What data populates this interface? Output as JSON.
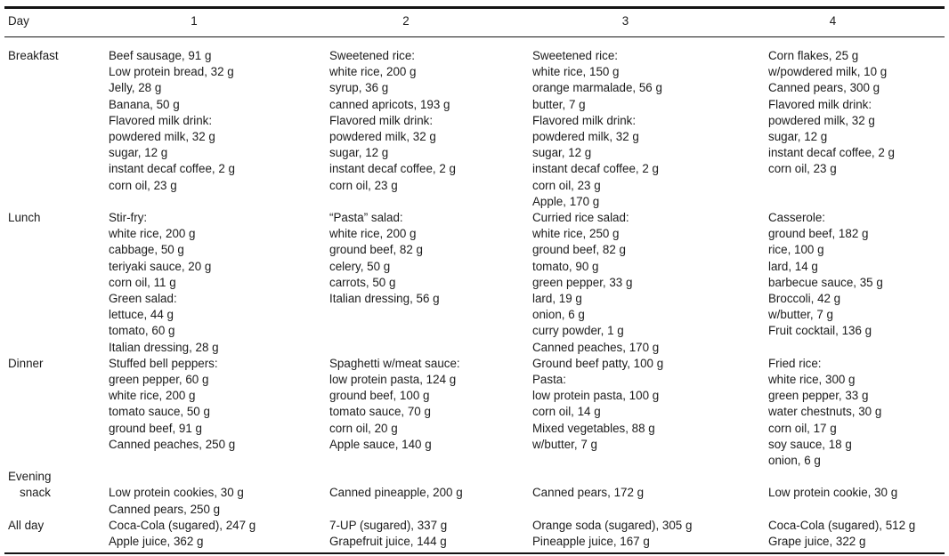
{
  "table": {
    "header": {
      "label": "Day",
      "days": [
        "1",
        "2",
        "3",
        "4"
      ]
    },
    "rows": [
      {
        "id": "breakfast",
        "label_lines": [
          "Breakfast"
        ],
        "days": [
          [
            "Beef sausage, 91 g",
            "Low protein bread, 32 g",
            "Jelly, 28 g",
            "Banana, 50 g",
            "Flavored milk drink:",
            "powdered milk, 32 g",
            "sugar, 12 g",
            "instant decaf coffee, 2 g",
            "corn oil, 23 g"
          ],
          [
            "Sweetened rice:",
            "white rice, 200 g",
            "syrup, 36 g",
            "canned apricots, 193 g",
            "Flavored milk drink:",
            "powdered milk, 32 g",
            "sugar, 12 g",
            "instant decaf coffee, 2 g",
            "corn oil, 23 g"
          ],
          [
            "Sweetened rice:",
            "white rice, 150 g",
            "orange marmalade, 56 g",
            "butter, 7 g",
            "Flavored milk drink:",
            "powdered milk, 32 g",
            "sugar, 12 g",
            "instant decaf coffee, 2 g",
            "corn oil, 23 g",
            "Apple, 170 g"
          ],
          [
            "Corn flakes, 25 g",
            "w/powdered milk, 10 g",
            "Canned pears, 300 g",
            "Flavored milk drink:",
            "powdered milk, 32 g",
            "sugar, 12 g",
            "instant decaf coffee, 2 g",
            "corn oil, 23 g"
          ]
        ]
      },
      {
        "id": "lunch",
        "label_lines": [
          "Lunch"
        ],
        "days": [
          [
            "Stir-fry:",
            "white rice, 200 g",
            "cabbage, 50 g",
            "teriyaki sauce, 20 g",
            "corn oil, 11 g",
            "Green salad:",
            "lettuce, 44 g",
            "tomato, 60 g",
            "Italian dressing, 28 g"
          ],
          [
            "“Pasta” salad:",
            "white rice, 200 g",
            "ground beef, 82 g",
            "celery, 50 g",
            "carrots, 50 g",
            "Italian dressing, 56 g"
          ],
          [
            "Curried rice salad:",
            "white rice, 250 g",
            "ground beef, 82 g",
            "tomato, 90 g",
            "green pepper, 33 g",
            "lard, 19 g",
            "onion, 6 g",
            "curry powder, 1 g",
            "Canned peaches, 170 g"
          ],
          [
            "Casserole:",
            "ground beef, 182 g",
            "rice, 100 g",
            "lard, 14 g",
            "barbecue sauce, 35 g",
            "Broccoli, 42 g",
            "w/butter, 7 g",
            "Fruit cocktail, 136 g"
          ]
        ]
      },
      {
        "id": "dinner",
        "label_lines": [
          "Dinner"
        ],
        "days": [
          [
            "Stuffed bell peppers:",
            "green pepper, 60 g",
            "white rice, 200 g",
            "tomato sauce, 50 g",
            "ground beef, 91 g",
            "Canned peaches, 250 g"
          ],
          [
            "Spaghetti w/meat sauce:",
            "low protein pasta, 124 g",
            "ground beef, 100 g",
            "tomato sauce, 70 g",
            "corn oil, 20 g",
            "Apple sauce, 140 g"
          ],
          [
            "Ground beef patty, 100 g",
            "Pasta:",
            "low protein pasta, 100 g",
            "corn oil, 14 g",
            "Mixed vegetables, 88 g",
            "w/butter, 7 g"
          ],
          [
            "Fried rice:",
            "white rice, 300 g",
            "green pepper, 33 g",
            "water chestnuts, 30 g",
            "corn oil, 17 g",
            "soy sauce, 18 g",
            "onion, 6 g"
          ]
        ]
      },
      {
        "id": "evening-snack",
        "label_lines": [
          "Evening",
          "snack"
        ],
        "days": [
          [
            "Low protein cookies, 30 g",
            "Canned pears, 250 g"
          ],
          [
            "Canned pineapple, 200 g"
          ],
          [
            "Canned pears, 172 g"
          ],
          [
            "Low protein cookie, 30 g"
          ]
        ]
      },
      {
        "id": "all-day",
        "label_lines": [
          "All day"
        ],
        "days": [
          [
            "Coca-Cola (sugared), 247 g",
            "Apple juice, 362 g"
          ],
          [
            "7-UP (sugared), 337 g",
            "Grapefruit juice, 144 g"
          ],
          [
            "Orange soda (sugared), 305 g",
            "Pineapple juice, 167 g"
          ],
          [
            "Coca-Cola (sugared), 512 g",
            "Grape juice, 322 g"
          ]
        ]
      }
    ]
  }
}
